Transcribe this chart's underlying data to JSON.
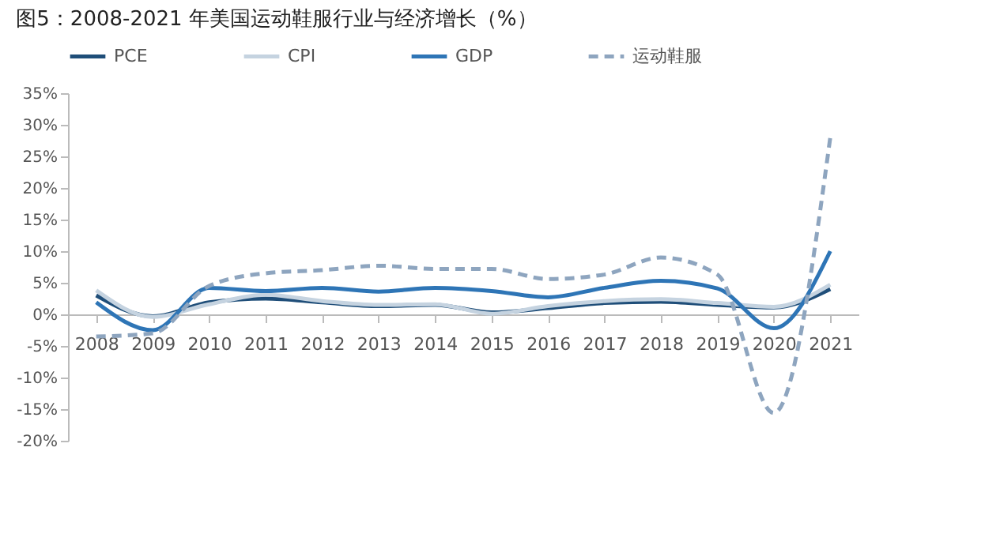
{
  "chart_data": {
    "type": "line",
    "title": "图5：2008-2021 年美国运动鞋服行业与经济增长（%）",
    "categories": [
      "2008",
      "2009",
      "2010",
      "2011",
      "2012",
      "2013",
      "2014",
      "2015",
      "2016",
      "2017",
      "2018",
      "2019",
      "2020",
      "2021"
    ],
    "series": [
      {
        "name": "PCE",
        "color": "#1f4e79",
        "line_style": "solid",
        "values": [
          3.0,
          -0.3,
          1.9,
          2.5,
          1.9,
          1.3,
          1.5,
          0.3,
          1.0,
          1.8,
          2.0,
          1.5,
          1.1,
          4.0
        ]
      },
      {
        "name": "CPI",
        "color": "#c5d3e0",
        "line_style": "solid",
        "values": [
          3.8,
          -0.4,
          1.6,
          3.1,
          2.1,
          1.5,
          1.6,
          0.1,
          1.3,
          2.1,
          2.4,
          1.8,
          1.2,
          4.7
        ]
      },
      {
        "name": "GDP",
        "color": "#2e75b6",
        "line_style": "solid",
        "values": [
          1.9,
          -2.5,
          4.2,
          3.7,
          4.2,
          3.6,
          4.2,
          3.7,
          2.7,
          4.2,
          5.3,
          4.1,
          -2.2,
          10.0
        ]
      },
      {
        "name": "运动鞋服",
        "color": "#8ea5bf",
        "line_style": "dashed",
        "values": [
          -3.5,
          -3.0,
          4.5,
          6.5,
          7.0,
          7.7,
          7.2,
          7.2,
          5.6,
          6.3,
          9.0,
          6.3,
          -15.6,
          28.0
        ]
      }
    ],
    "ylim": [
      -20,
      35
    ],
    "yticks": [
      {
        "value": -20,
        "label": "-20%"
      },
      {
        "value": -15,
        "label": "-15%"
      },
      {
        "value": -10,
        "label": "-10%"
      },
      {
        "value": -5,
        "label": "-5%"
      },
      {
        "value": 0,
        "label": "0%"
      },
      {
        "value": 5,
        "label": "5%"
      },
      {
        "value": 10,
        "label": "10%"
      },
      {
        "value": 15,
        "label": "15%"
      },
      {
        "value": 20,
        "label": "20%"
      },
      {
        "value": 25,
        "label": "25%"
      },
      {
        "value": 30,
        "label": "30%"
      },
      {
        "value": 35,
        "label": "35%"
      }
    ],
    "grid": false,
    "legend": "top",
    "marker": "none"
  }
}
